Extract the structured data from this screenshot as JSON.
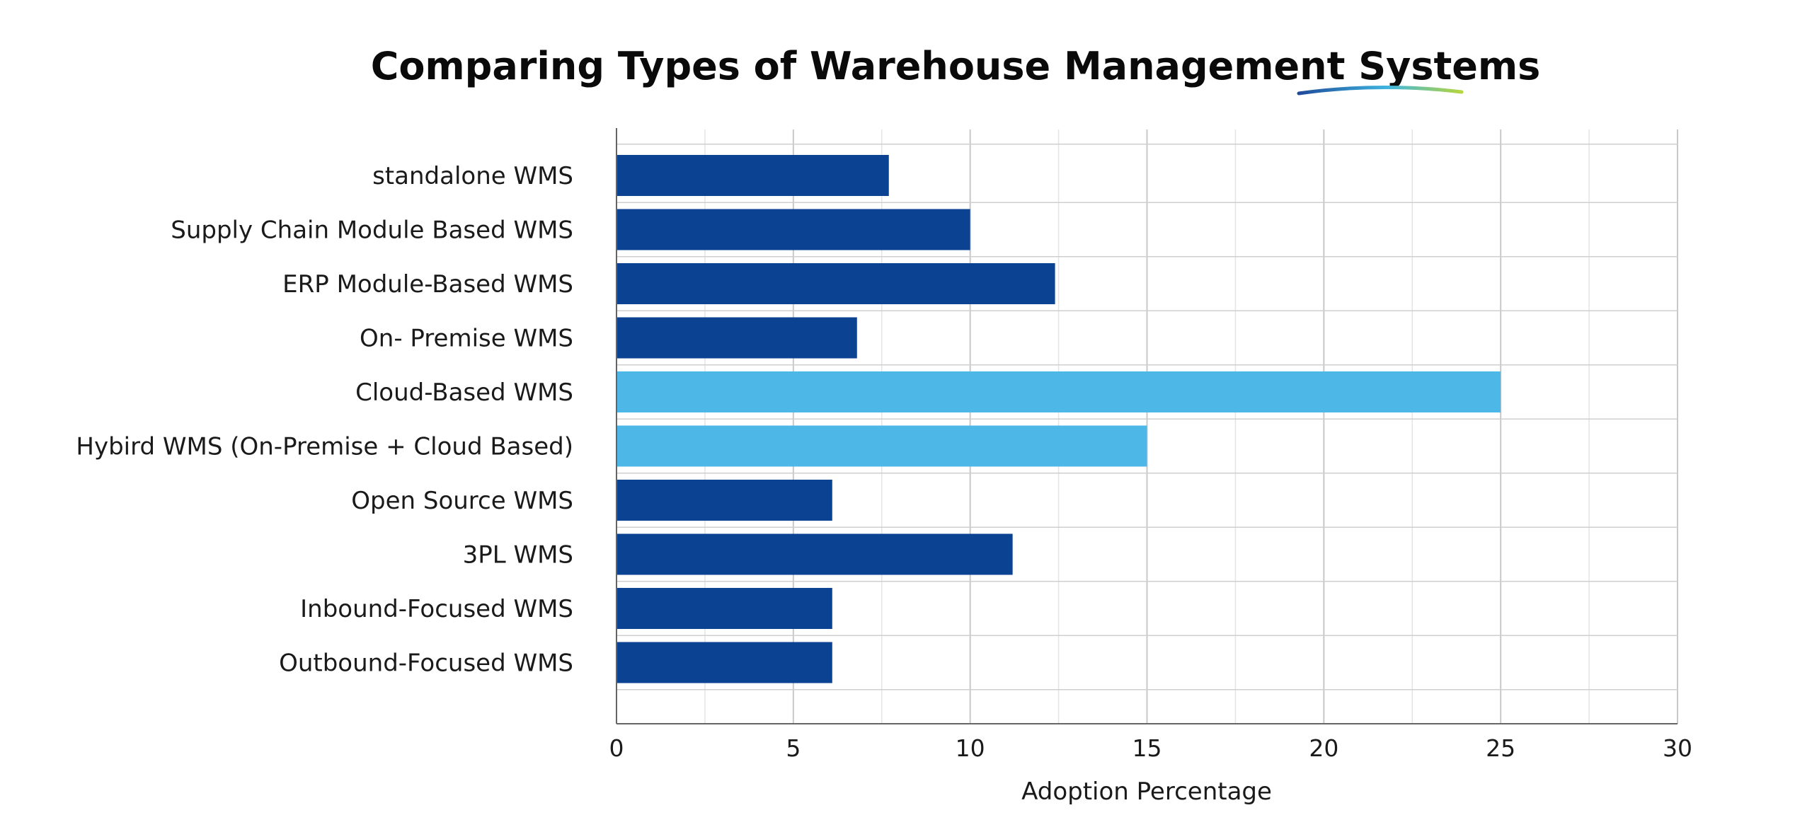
{
  "chart_data": {
    "type": "bar",
    "orientation": "horizontal",
    "title": "Comparing Types of Warehouse Management Systems",
    "xlabel": "Adoption Percentage",
    "ylabel": "",
    "xlim": [
      0,
      30
    ],
    "x_ticks": [
      "0",
      "5",
      "10",
      "15",
      "20",
      "25",
      "30"
    ],
    "grid": true,
    "categories": [
      "standalone WMS",
      "Supply Chain Module Based WMS",
      "ERP Module-Based WMS",
      "On- Premise WMS",
      "Cloud-Based WMS",
      "Hybird WMS (On-Premise + Cloud Based)",
      "Open Source WMS",
      "3PL WMS",
      "Inbound-Focused WMS",
      "Outbound-Focused WMS"
    ],
    "values": [
      7.7,
      10,
      12.4,
      6.8,
      25,
      15,
      6.1,
      11.2,
      6.1,
      6.1
    ],
    "colors": {
      "default_bar": "#0b4292",
      "highlight_bar": "#4db8e8",
      "title_underline_start": "#1f4b9a",
      "title_underline_mid": "#3fb6e0",
      "title_underline_end": "#b6d63c",
      "grid": "#d4d4d4",
      "axis": "#666666"
    },
    "highlighted": [
      "Cloud-Based WMS",
      "Hybird WMS (On-Premise + Cloud Based)"
    ]
  }
}
